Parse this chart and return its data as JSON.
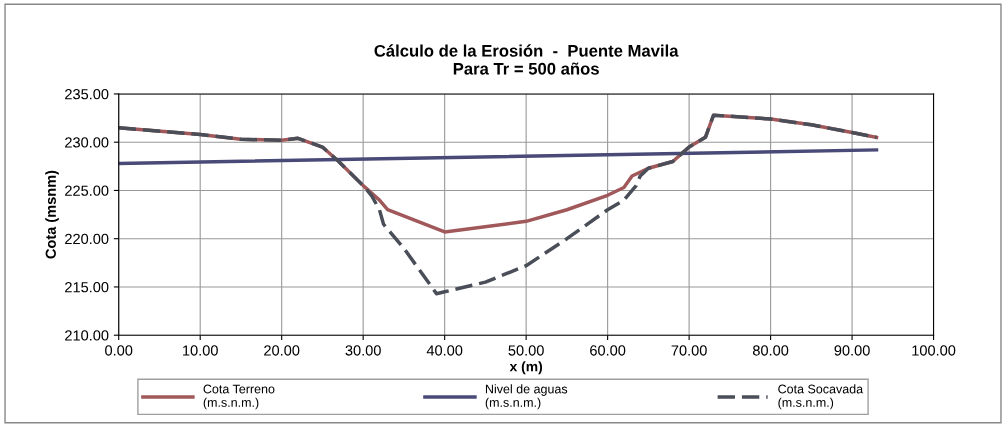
{
  "chart_data": {
    "type": "line",
    "title": "Cálculo de la Erosión  -  Puente Mavila\nPara Tr = 500 años",
    "xlabel": "x (m)",
    "ylabel": "Cota (msnm)",
    "series": [
      {
        "name": "Cota Terreno\n(m.s.n.m.)",
        "color": "#a0585a",
        "line_style": "solid",
        "x": [
          0,
          10,
          15,
          20,
          22,
          25,
          27,
          30,
          32,
          33,
          40,
          50,
          55,
          60,
          62,
          63,
          65,
          68,
          70,
          72,
          73,
          80,
          85,
          90,
          93
        ],
        "values": [
          231.5,
          230.8,
          230.3,
          230.2,
          230.4,
          229.5,
          228,
          225.5,
          224,
          223,
          220.7,
          221.8,
          223,
          224.5,
          225.3,
          226.5,
          227.3,
          228,
          229.5,
          230.5,
          232.8,
          232.4,
          231.8,
          231,
          230.5
        ]
      },
      {
        "name": "Nivel de aguas\n(m.s.n.m.)",
        "color": "#4a4a78",
        "line_style": "solid",
        "x": [
          0,
          93
        ],
        "values": [
          227.8,
          229.2
        ]
      },
      {
        "name": "Cota Socavada\n(m.s.n.m.)",
        "color": "#4a4e58",
        "line_style": "dashed",
        "x": [
          0,
          10,
          15,
          20,
          22,
          25,
          27,
          30,
          31,
          32,
          32.5,
          35,
          39,
          40,
          45,
          50,
          55,
          60,
          62,
          63.5,
          64,
          65,
          68,
          70,
          72,
          73,
          80,
          85,
          90,
          93
        ],
        "values": [
          231.5,
          230.8,
          230.3,
          230.2,
          230.4,
          229.5,
          228,
          225.5,
          224.5,
          223,
          221.5,
          219,
          214.3,
          214.5,
          215.5,
          217.2,
          220,
          223,
          224,
          225.5,
          226.5,
          227.3,
          228,
          229.5,
          230.5,
          232.8,
          232.4,
          231.8,
          231,
          230.5
        ]
      }
    ],
    "xlim": [
      0,
      100
    ],
    "xticks": [
      {
        "value": 0,
        "label": "0.00"
      },
      {
        "value": 10,
        "label": "10.00"
      },
      {
        "value": 20,
        "label": "20.00"
      },
      {
        "value": 30,
        "label": "30.00"
      },
      {
        "value": 40,
        "label": "40.00"
      },
      {
        "value": 50,
        "label": "50.00"
      },
      {
        "value": 60,
        "label": "60.00"
      },
      {
        "value": 70,
        "label": "70.00"
      },
      {
        "value": 80,
        "label": "80.00"
      },
      {
        "value": 90,
        "label": "90.00"
      },
      {
        "value": 100,
        "label": "100.00"
      }
    ],
    "ylim": [
      210,
      235
    ],
    "yticks": [
      {
        "value": 210,
        "label": "210.00"
      },
      {
        "value": 215,
        "label": "215.00"
      },
      {
        "value": 220,
        "label": "220.00"
      },
      {
        "value": 225,
        "label": "225.00"
      },
      {
        "value": 230,
        "label": "230.00"
      },
      {
        "value": 235,
        "label": "235.00"
      }
    ],
    "grid": true,
    "legend": "bottom",
    "marker": "none"
  }
}
